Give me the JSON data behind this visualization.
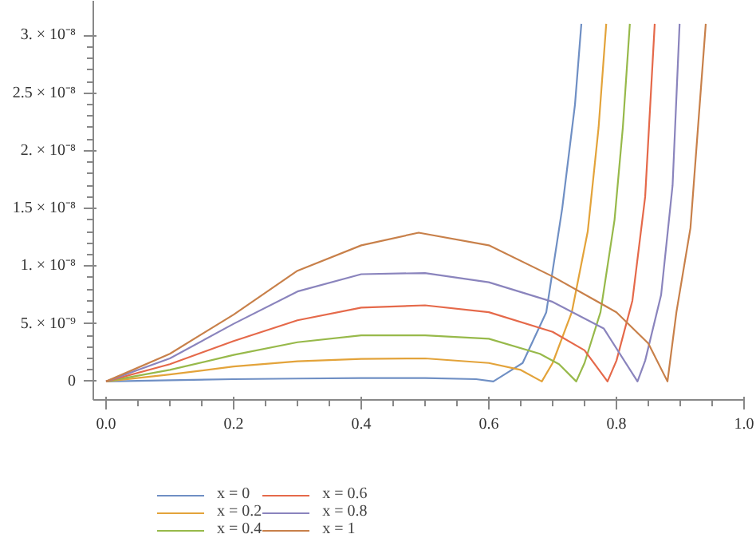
{
  "chart_data": {
    "type": "line",
    "xlim": [
      -0.02,
      1.0
    ],
    "ylim": [
      -1.6e-09,
      3.3e-08
    ],
    "xticks": [
      {
        "value": 0,
        "label": "0.0"
      },
      0.2,
      0.4,
      0.6,
      0.8,
      {
        "value": 1,
        "label": "1.0"
      }
    ],
    "yticks": [
      0,
      {
        "value": 5e-09,
        "label": "5. × 10⁻⁹"
      },
      {
        "value": 1e-08,
        "label": "1. × 10⁻⁸"
      },
      {
        "value": 1.5e-08,
        "label": "1.5 × 10⁻⁸"
      },
      {
        "value": 2e-08,
        "label": "2. × 10⁻⁸"
      },
      {
        "value": 2.5e-08,
        "label": "2.5 × 10⁻⁸"
      },
      {
        "value": 3e-08,
        "label": "3. × 10⁻⁸"
      }
    ],
    "grid": false,
    "legend": "bottom",
    "marker": "none",
    "line_style": "solid",
    "series": [
      {
        "name": "x = 0",
        "color": "#6f8fc4",
        "x": [
          0,
          0.1,
          0.2,
          0.3,
          0.4,
          0.5,
          0.58,
          0.607,
          0.63,
          0.653,
          0.69,
          0.715,
          0.735,
          0.745
        ],
        "values": [
          0,
          1e-10,
          2e-10,
          2.5e-10,
          3e-10,
          3e-10,
          2e-10,
          0,
          8e-10,
          1.6e-09,
          6e-09,
          1.5e-08,
          2.4e-08,
          3.1e-08
        ]
      },
      {
        "name": "x = 0.2",
        "color": "#e3a33a",
        "x": [
          0,
          0.1,
          0.2,
          0.3,
          0.4,
          0.5,
          0.6,
          0.65,
          0.683,
          0.7,
          0.73,
          0.755,
          0.772,
          0.784
        ],
        "values": [
          0,
          6e-10,
          1.3e-09,
          1.75e-09,
          1.95e-09,
          2e-09,
          1.6e-09,
          1e-09,
          0,
          1.6e-09,
          6e-09,
          1.3e-08,
          2.2e-08,
          3.1e-08
        ]
      },
      {
        "name": "x = 0.4",
        "color": "#97b94a",
        "x": [
          0,
          0.1,
          0.2,
          0.3,
          0.4,
          0.5,
          0.6,
          0.68,
          0.71,
          0.737,
          0.75,
          0.775,
          0.797,
          0.81,
          0.821
        ],
        "values": [
          0,
          1e-09,
          2.3e-09,
          3.4e-09,
          4e-09,
          4e-09,
          3.7e-09,
          2.4e-09,
          1.5e-09,
          0,
          1.6e-09,
          6e-09,
          1.4e-08,
          2.2e-08,
          3.1e-08
        ]
      },
      {
        "name": "x = 0.6",
        "color": "#e5694a",
        "x": [
          0,
          0.1,
          0.2,
          0.3,
          0.4,
          0.5,
          0.6,
          0.7,
          0.75,
          0.786,
          0.8,
          0.825,
          0.845,
          0.86
        ],
        "values": [
          0,
          1.5e-09,
          3.5e-09,
          5.3e-09,
          6.4e-09,
          6.6e-09,
          6e-09,
          4.3e-09,
          2.7e-09,
          0,
          1.8e-09,
          7e-09,
          1.6e-08,
          3.1e-08
        ]
      },
      {
        "name": "x = 0.8",
        "color": "#8a84bd",
        "x": [
          0,
          0.1,
          0.2,
          0.3,
          0.4,
          0.5,
          0.6,
          0.7,
          0.78,
          0.833,
          0.845,
          0.87,
          0.888,
          0.899
        ],
        "values": [
          0,
          2e-09,
          5e-09,
          7.8e-09,
          9.3e-09,
          9.4e-09,
          8.6e-09,
          6.9e-09,
          4.6e-09,
          0,
          1.8e-09,
          7.5e-09,
          1.7e-08,
          3.1e-08
        ]
      },
      {
        "name": "x = 1",
        "color": "#c8804a",
        "x": [
          0,
          0.1,
          0.2,
          0.3,
          0.4,
          0.49,
          0.6,
          0.7,
          0.8,
          0.85,
          0.88,
          0.894,
          0.916,
          0.94
        ],
        "values": [
          0,
          2.4e-09,
          5.8e-09,
          9.6e-09,
          1.18e-08,
          1.29e-08,
          1.18e-08,
          9.1e-09,
          6e-09,
          3.3e-09,
          0,
          6e-09,
          1.33e-08,
          3.1e-08
        ]
      }
    ]
  }
}
